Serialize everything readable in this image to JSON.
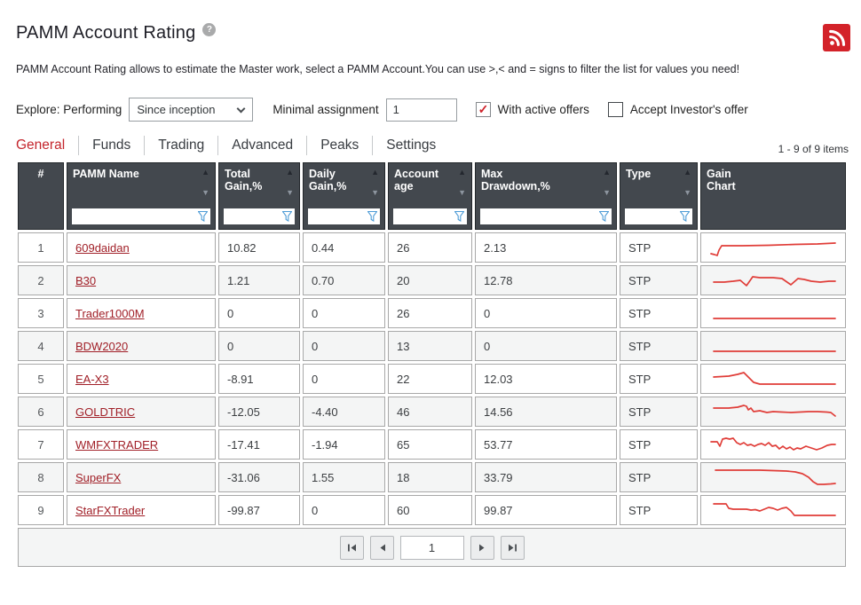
{
  "page": {
    "title": "PAMM Account Rating",
    "description": "PAMM Account Rating allows to estimate the Master work, select a PAMM Account.You can use >,< and = signs to filter the list for values you need!"
  },
  "icons": {
    "help": "?",
    "sort_asc": "▲",
    "sort_desc": "▼"
  },
  "filters": {
    "explore_label": "Explore: Performing",
    "period_selected": "Since inception",
    "minimal_assignment_label": "Minimal assignment",
    "minimal_assignment_value": "1",
    "with_active_offers": {
      "label": "With active offers",
      "checked": true
    },
    "accept_investors_offer": {
      "label": "Accept Investor's offer",
      "checked": false
    }
  },
  "tabs": [
    {
      "label": "General",
      "active": true
    },
    {
      "label": "Funds",
      "active": false
    },
    {
      "label": "Trading",
      "active": false
    },
    {
      "label": "Advanced",
      "active": false
    },
    {
      "label": "Peaks",
      "active": false
    },
    {
      "label": "Settings",
      "active": false
    }
  ],
  "items_count": "1 - 9 of 9 items",
  "table": {
    "columns": [
      {
        "line1": "#",
        "line2": ""
      },
      {
        "line1": "PAMM Name",
        "line2": ""
      },
      {
        "line1": "Total",
        "line2": "Gain,%"
      },
      {
        "line1": "Daily",
        "line2": "Gain,%"
      },
      {
        "line1": "Account",
        "line2": "age"
      },
      {
        "line1": "Max",
        "line2": "Drawdown,%"
      },
      {
        "line1": "Type",
        "line2": ""
      },
      {
        "line1": "Gain",
        "line2": "Chart"
      }
    ],
    "filter_values": {
      "pamm_name": "",
      "total_gain": "",
      "daily_gain": "",
      "account_age": "",
      "max_drawdown": "",
      "type": ""
    }
  },
  "rows": [
    {
      "num": "1",
      "name": "609daidan",
      "total_gain": "10.82",
      "daily_gain": "0.44",
      "account_age": "26",
      "max_drawdown": "2.13",
      "type": "STP",
      "sparkline": [
        [
          5,
          22
        ],
        [
          9,
          23
        ],
        [
          12,
          24
        ],
        [
          14,
          18
        ],
        [
          17,
          13
        ],
        [
          40,
          13
        ],
        [
          70,
          12.5
        ],
        [
          100,
          11.5
        ],
        [
          125,
          11
        ],
        [
          145,
          10
        ]
      ]
    },
    {
      "num": "2",
      "name": "B30",
      "total_gain": "1.21",
      "daily_gain": "0.70",
      "account_age": "20",
      "max_drawdown": "12.78",
      "type": "STP",
      "sparkline": [
        [
          8,
          17
        ],
        [
          20,
          17
        ],
        [
          30,
          16
        ],
        [
          38,
          15
        ],
        [
          45,
          21
        ],
        [
          52,
          11
        ],
        [
          60,
          12
        ],
        [
          75,
          12
        ],
        [
          85,
          13
        ],
        [
          95,
          20
        ],
        [
          103,
          13
        ],
        [
          110,
          14
        ],
        [
          118,
          16
        ],
        [
          128,
          17
        ],
        [
          138,
          16
        ],
        [
          145,
          16
        ]
      ]
    },
    {
      "num": "3",
      "name": "Trader1000M",
      "total_gain": "0",
      "daily_gain": "0",
      "account_age": "26",
      "max_drawdown": "0",
      "type": "STP",
      "sparkline": [
        [
          8,
          21
        ],
        [
          145,
          21
        ]
      ]
    },
    {
      "num": "4",
      "name": "BDW2020",
      "total_gain": "0",
      "daily_gain": "0",
      "account_age": "13",
      "max_drawdown": "0",
      "type": "STP",
      "sparkline": [
        [
          8,
          21
        ],
        [
          145,
          21
        ]
      ]
    },
    {
      "num": "5",
      "name": "EA-X3",
      "total_gain": "-8.91",
      "daily_gain": "0",
      "account_age": "22",
      "max_drawdown": "12.03",
      "type": "STP",
      "sparkline": [
        [
          8,
          13
        ],
        [
          25,
          12
        ],
        [
          35,
          10
        ],
        [
          42,
          8
        ],
        [
          48,
          14
        ],
        [
          53,
          19
        ],
        [
          60,
          21
        ],
        [
          80,
          21
        ],
        [
          145,
          21
        ]
      ]
    },
    {
      "num": "6",
      "name": "GOLDTRIC",
      "total_gain": "-12.05",
      "daily_gain": "-4.40",
      "account_age": "46",
      "max_drawdown": "14.56",
      "type": "STP",
      "sparkline": [
        [
          8,
          11
        ],
        [
          25,
          11
        ],
        [
          35,
          10
        ],
        [
          42,
          8
        ],
        [
          45,
          9
        ],
        [
          47,
          13
        ],
        [
          50,
          11
        ],
        [
          53,
          15
        ],
        [
          60,
          14
        ],
        [
          68,
          16
        ],
        [
          75,
          15
        ],
        [
          85,
          15.5
        ],
        [
          95,
          16
        ],
        [
          105,
          15.5
        ],
        [
          115,
          15
        ],
        [
          125,
          15
        ],
        [
          135,
          15.5
        ],
        [
          140,
          16
        ],
        [
          145,
          20
        ]
      ]
    },
    {
      "num": "7",
      "name": "WMFXTRADER",
      "total_gain": "-17.41",
      "daily_gain": "-1.94",
      "account_age": "65",
      "max_drawdown": "53.77",
      "type": "STP",
      "sparkline": [
        [
          5,
          12
        ],
        [
          12,
          12
        ],
        [
          15,
          17
        ],
        [
          18,
          9
        ],
        [
          22,
          8
        ],
        [
          26,
          9
        ],
        [
          30,
          8
        ],
        [
          34,
          13
        ],
        [
          38,
          15
        ],
        [
          42,
          13
        ],
        [
          46,
          16
        ],
        [
          50,
          15
        ],
        [
          54,
          17
        ],
        [
          58,
          15
        ],
        [
          62,
          14
        ],
        [
          66,
          16
        ],
        [
          70,
          13
        ],
        [
          74,
          17
        ],
        [
          78,
          16
        ],
        [
          82,
          20
        ],
        [
          86,
          17
        ],
        [
          90,
          20
        ],
        [
          94,
          18
        ],
        [
          98,
          21
        ],
        [
          102,
          19
        ],
        [
          106,
          20
        ],
        [
          112,
          17
        ],
        [
          118,
          19
        ],
        [
          124,
          21
        ],
        [
          130,
          19
        ],
        [
          136,
          16
        ],
        [
          141,
          15
        ],
        [
          145,
          15
        ]
      ]
    },
    {
      "num": "8",
      "name": "SuperFX",
      "total_gain": "-31.06",
      "daily_gain": "1.55",
      "account_age": "18",
      "max_drawdown": "33.79",
      "type": "STP",
      "sparkline": [
        [
          10,
          7
        ],
        [
          60,
          7
        ],
        [
          75,
          7.5
        ],
        [
          90,
          8
        ],
        [
          100,
          9
        ],
        [
          108,
          11
        ],
        [
          115,
          15
        ],
        [
          120,
          20
        ],
        [
          125,
          23
        ],
        [
          132,
          23
        ],
        [
          140,
          22.5
        ],
        [
          145,
          22
        ]
      ]
    },
    {
      "num": "9",
      "name": "StarFXTrader",
      "total_gain": "-99.87",
      "daily_gain": "0",
      "account_age": "60",
      "max_drawdown": "99.87",
      "type": "STP",
      "sparkline": [
        [
          8,
          8
        ],
        [
          22,
          8
        ],
        [
          25,
          13
        ],
        [
          30,
          14
        ],
        [
          45,
          14
        ],
        [
          50,
          15
        ],
        [
          55,
          14.5
        ],
        [
          60,
          16
        ],
        [
          65,
          14
        ],
        [
          70,
          12
        ],
        [
          75,
          13
        ],
        [
          80,
          15
        ],
        [
          85,
          13
        ],
        [
          90,
          12
        ],
        [
          95,
          16
        ],
        [
          99,
          21
        ],
        [
          110,
          21
        ],
        [
          145,
          21
        ]
      ]
    }
  ],
  "pagination": {
    "page": "1"
  }
}
